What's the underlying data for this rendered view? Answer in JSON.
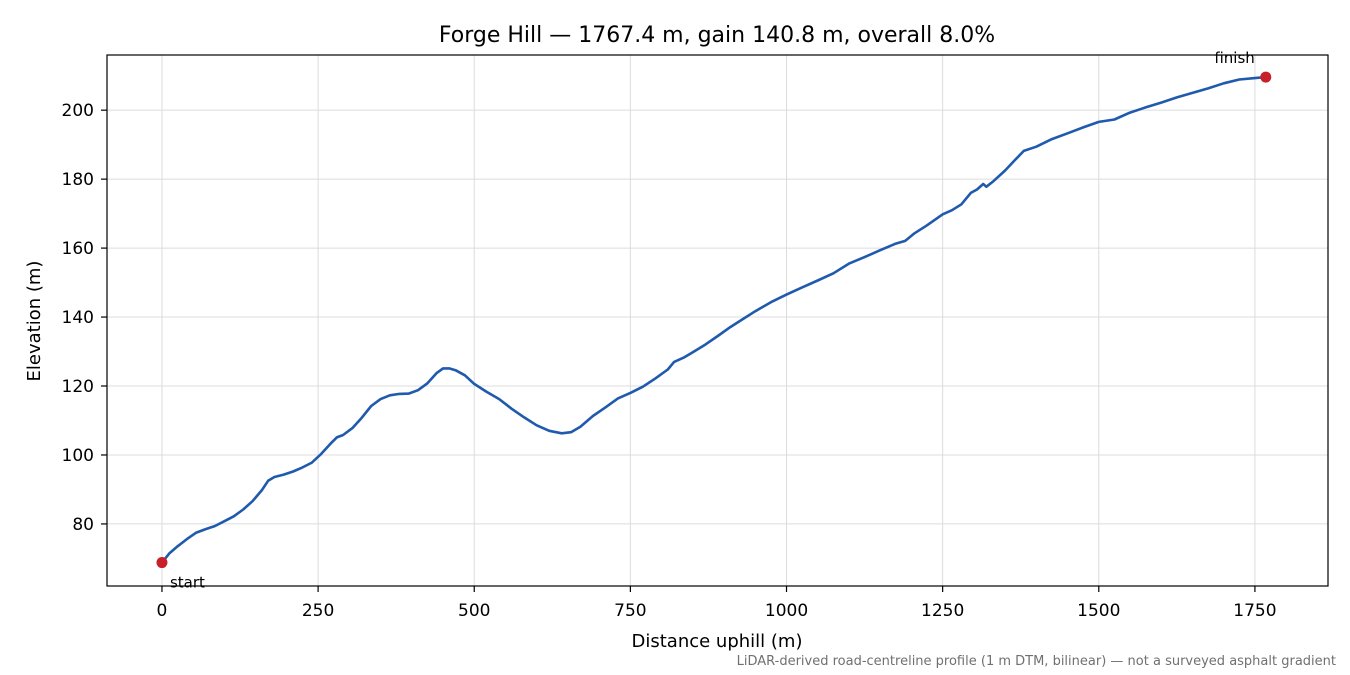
{
  "chart_data": {
    "type": "line",
    "title": "Forge Hill — 1767.4 m, gain 140.8 m, overall 8.0%",
    "xlabel": "Distance uphill (m)",
    "ylabel": "Elevation (m)",
    "xlim": [
      -88,
      1867
    ],
    "ylim": [
      62,
      216
    ],
    "xticks": [
      0,
      250,
      500,
      750,
      1000,
      1250,
      1500,
      1750
    ],
    "yticks": [
      80,
      100,
      120,
      140,
      160,
      180,
      200
    ],
    "grid": true,
    "series": [
      {
        "color": "#1f5aad",
        "points": [
          [
            0,
            68.8
          ],
          [
            12,
            71.5
          ],
          [
            25,
            73.5
          ],
          [
            40,
            75.6
          ],
          [
            55,
            77.5
          ],
          [
            70,
            78.5
          ],
          [
            85,
            79.4
          ],
          [
            100,
            80.8
          ],
          [
            115,
            82.2
          ],
          [
            130,
            84.2
          ],
          [
            145,
            86.6
          ],
          [
            160,
            89.8
          ],
          [
            170,
            92.5
          ],
          [
            180,
            93.6
          ],
          [
            195,
            94.3
          ],
          [
            210,
            95.2
          ],
          [
            225,
            96.4
          ],
          [
            240,
            97.8
          ],
          [
            255,
            100.3
          ],
          [
            270,
            103.3
          ],
          [
            280,
            105.1
          ],
          [
            290,
            105.8
          ],
          [
            305,
            107.8
          ],
          [
            320,
            110.8
          ],
          [
            335,
            114.2
          ],
          [
            350,
            116.2
          ],
          [
            365,
            117.3
          ],
          [
            380,
            117.7
          ],
          [
            395,
            117.8
          ],
          [
            410,
            118.8
          ],
          [
            425,
            120.8
          ],
          [
            440,
            123.8
          ],
          [
            450,
            125.1
          ],
          [
            460,
            125.1
          ],
          [
            470,
            124.6
          ],
          [
            485,
            123.1
          ],
          [
            500,
            120.6
          ],
          [
            520,
            118.3
          ],
          [
            540,
            116.2
          ],
          [
            560,
            113.4
          ],
          [
            580,
            110.9
          ],
          [
            600,
            108.6
          ],
          [
            620,
            107.0
          ],
          [
            640,
            106.3
          ],
          [
            655,
            106.6
          ],
          [
            670,
            108.2
          ],
          [
            690,
            111.3
          ],
          [
            710,
            113.8
          ],
          [
            730,
            116.4
          ],
          [
            750,
            118.0
          ],
          [
            770,
            119.8
          ],
          [
            790,
            122.2
          ],
          [
            810,
            124.8
          ],
          [
            820,
            127.0
          ],
          [
            835,
            128.2
          ],
          [
            850,
            129.8
          ],
          [
            870,
            132.0
          ],
          [
            890,
            134.5
          ],
          [
            910,
            137.1
          ],
          [
            930,
            139.4
          ],
          [
            950,
            141.7
          ],
          [
            975,
            144.3
          ],
          [
            1000,
            146.5
          ],
          [
            1025,
            148.6
          ],
          [
            1050,
            150.6
          ],
          [
            1075,
            152.7
          ],
          [
            1100,
            155.5
          ],
          [
            1125,
            157.4
          ],
          [
            1150,
            159.4
          ],
          [
            1175,
            161.3
          ],
          [
            1190,
            162.1
          ],
          [
            1205,
            164.3
          ],
          [
            1225,
            166.6
          ],
          [
            1250,
            169.8
          ],
          [
            1265,
            171.0
          ],
          [
            1280,
            172.7
          ],
          [
            1295,
            176.0
          ],
          [
            1305,
            177.0
          ],
          [
            1315,
            178.6
          ],
          [
            1320,
            177.8
          ],
          [
            1330,
            179.2
          ],
          [
            1350,
            182.5
          ],
          [
            1365,
            185.4
          ],
          [
            1380,
            188.2
          ],
          [
            1400,
            189.4
          ],
          [
            1425,
            191.6
          ],
          [
            1450,
            193.3
          ],
          [
            1475,
            195.0
          ],
          [
            1500,
            196.6
          ],
          [
            1525,
            197.3
          ],
          [
            1550,
            199.3
          ],
          [
            1575,
            200.8
          ],
          [
            1600,
            202.2
          ],
          [
            1625,
            203.7
          ],
          [
            1650,
            205.0
          ],
          [
            1675,
            206.3
          ],
          [
            1700,
            207.8
          ],
          [
            1725,
            208.9
          ],
          [
            1750,
            209.3
          ],
          [
            1767.4,
            209.6
          ]
        ]
      }
    ],
    "markers": [
      {
        "x": 0,
        "y": 68.8,
        "label": "start",
        "color": "#c8202b"
      },
      {
        "x": 1767.4,
        "y": 209.6,
        "label": "finish",
        "color": "#c8202b"
      }
    ]
  },
  "footnote": "LiDAR-derived road-centreline profile (1 m DTM, bilinear) — not a surveyed asphalt gradient"
}
